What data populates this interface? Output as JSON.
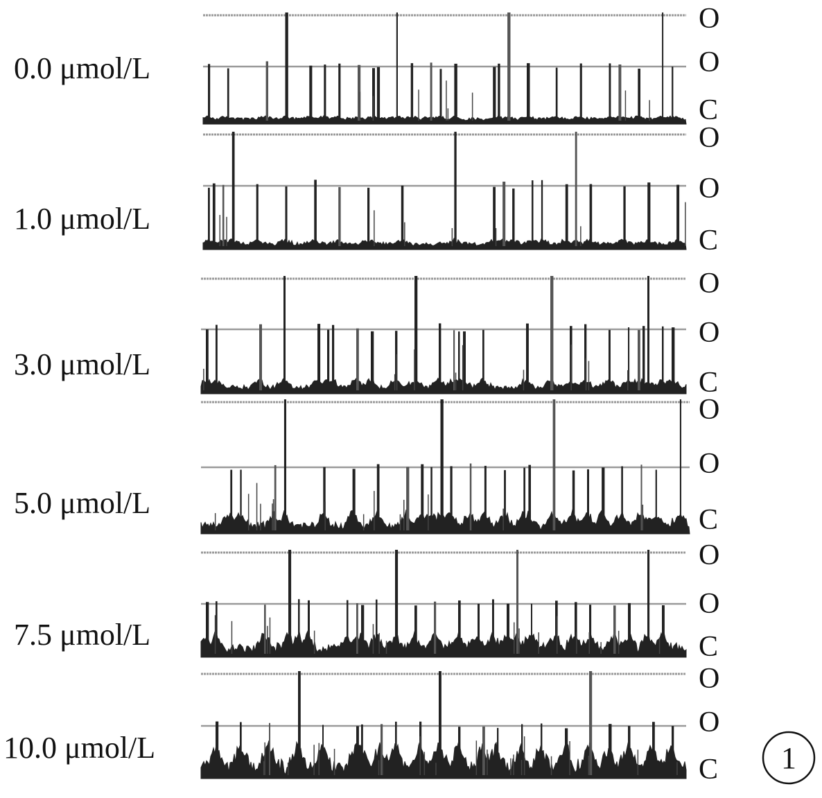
{
  "chart_data": {
    "type": "line",
    "title": "",
    "xlabel": "",
    "ylabel": "",
    "grid": false,
    "legend": "none",
    "panel_number": "1",
    "level_labels": [
      "O",
      "O",
      "C"
    ],
    "colors": {
      "trace": "#222222",
      "gridline": "#999999",
      "text": "#111111"
    },
    "series": [
      {
        "name": "0.0 μmol/L",
        "open_probability": 0.05,
        "spikes": [
          0.01,
          0.05,
          0.13,
          0.17,
          0.22,
          0.25,
          0.28,
          0.32,
          0.35,
          0.36,
          0.4,
          0.43,
          0.47,
          0.49,
          0.52,
          0.6,
          0.61,
          0.63,
          0.67,
          0.73,
          0.78,
          0.84,
          0.86,
          0.9,
          0.95,
          0.97
        ]
      },
      {
        "name": "1.0 μmol/L",
        "open_probability": 0.08,
        "spikes": [
          0.01,
          0.02,
          0.04,
          0.06,
          0.11,
          0.17,
          0.23,
          0.28,
          0.34,
          0.41,
          0.52,
          0.6,
          0.62,
          0.64,
          0.68,
          0.7,
          0.75,
          0.77,
          0.8,
          0.87,
          0.92,
          0.98
        ]
      },
      {
        "name": "3.0 μmol/L",
        "open_probability": 0.15,
        "spikes": [
          0.01,
          0.03,
          0.12,
          0.17,
          0.24,
          0.26,
          0.27,
          0.32,
          0.35,
          0.4,
          0.44,
          0.49,
          0.52,
          0.53,
          0.54,
          0.58,
          0.67,
          0.72,
          0.76,
          0.79,
          0.84,
          0.88,
          0.9,
          0.91,
          0.92,
          0.95,
          0.97
        ]
      },
      {
        "name": "5.0 μmol/L",
        "open_probability": 0.25,
        "spikes": [
          0.06,
          0.08,
          0.15,
          0.17,
          0.25,
          0.31,
          0.36,
          0.42,
          0.45,
          0.47,
          0.49,
          0.51,
          0.55,
          0.58,
          0.62,
          0.66,
          0.67,
          0.72,
          0.76,
          0.79,
          0.82,
          0.86,
          0.9,
          0.93,
          0.98
        ]
      },
      {
        "name": "7.5 μmol/L",
        "open_probability": 0.35,
        "spikes": [
          0.01,
          0.03,
          0.13,
          0.18,
          0.2,
          0.22,
          0.3,
          0.32,
          0.33,
          0.36,
          0.4,
          0.44,
          0.48,
          0.53,
          0.57,
          0.6,
          0.63,
          0.65,
          0.68,
          0.73,
          0.77,
          0.8,
          0.85,
          0.88,
          0.92,
          0.95
        ]
      },
      {
        "name": "10.0 μmol/L",
        "open_probability": 0.55,
        "spikes": [
          0.03,
          0.08,
          0.14,
          0.2,
          0.25,
          0.32,
          0.33,
          0.37,
          0.4,
          0.45,
          0.49,
          0.53,
          0.58,
          0.61,
          0.66,
          0.7,
          0.75,
          0.8,
          0.84,
          0.88,
          0.93,
          0.97
        ]
      }
    ]
  }
}
